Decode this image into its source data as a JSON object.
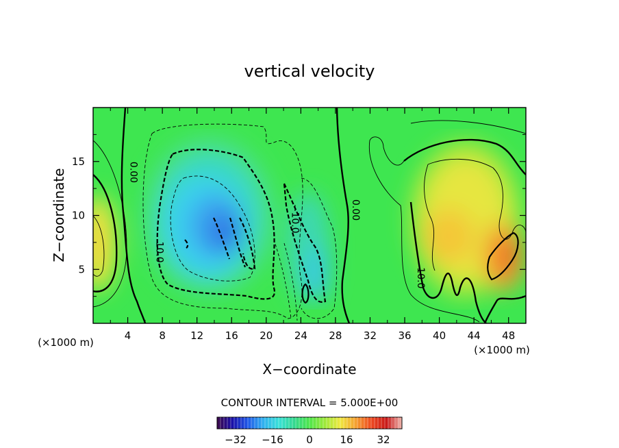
{
  "chart_data": {
    "type": "heatmap",
    "title": "vertical velocity",
    "xlabel": "X−coordinate",
    "ylabel": "Z−coordinate",
    "x_unit_left": "(×1000 m)",
    "x_unit_right": "(×1000 m)",
    "xlim": [
      0,
      50
    ],
    "ylim": [
      0,
      20
    ],
    "xticks": [
      4,
      8,
      12,
      16,
      20,
      24,
      28,
      32,
      36,
      40,
      44,
      48
    ],
    "yticks": [
      5,
      10,
      15
    ],
    "contour_interval_text": "CONTOUR INTERVAL = 5.000E+00",
    "contour_interval": 5.0,
    "colorbar": {
      "range": [
        -40,
        40
      ],
      "ticks": [
        -32,
        -16,
        0,
        16,
        32
      ],
      "colors": [
        "#3c0a4a",
        "#1a10a8",
        "#1f58e8",
        "#2fb0f0",
        "#38e0d8",
        "#34d890",
        "#4ee64a",
        "#9ee83a",
        "#f0e840",
        "#f4a030",
        "#ee4a20",
        "#c81818",
        "#f0b8b0"
      ]
    },
    "contour_labels": [
      {
        "text": "0.00",
        "x": 4.3,
        "y": 14.0
      },
      {
        "text": "10.0",
        "x": 7.3,
        "y": 6.6
      },
      {
        "text": "−10.0",
        "x": 23.0,
        "y": 9.7
      },
      {
        "text": "0.00",
        "x": 30.0,
        "y": 10.5
      },
      {
        "text": "10.0",
        "x": 37.5,
        "y": 4.2
      }
    ],
    "features": [
      {
        "kind": "updraft",
        "x": 1.0,
        "y": 7.5,
        "peak": 18
      },
      {
        "kind": "downdraft",
        "x": 14.5,
        "y": 9.5,
        "peak": -28
      },
      {
        "kind": "downdraft",
        "x": 26.0,
        "y": 6.0,
        "peak": -22
      },
      {
        "kind": "updraft",
        "x": 42.0,
        "y": 10.0,
        "peak": 20
      },
      {
        "kind": "updraft",
        "x": 47.0,
        "y": 6.5,
        "peak": 30
      }
    ]
  }
}
